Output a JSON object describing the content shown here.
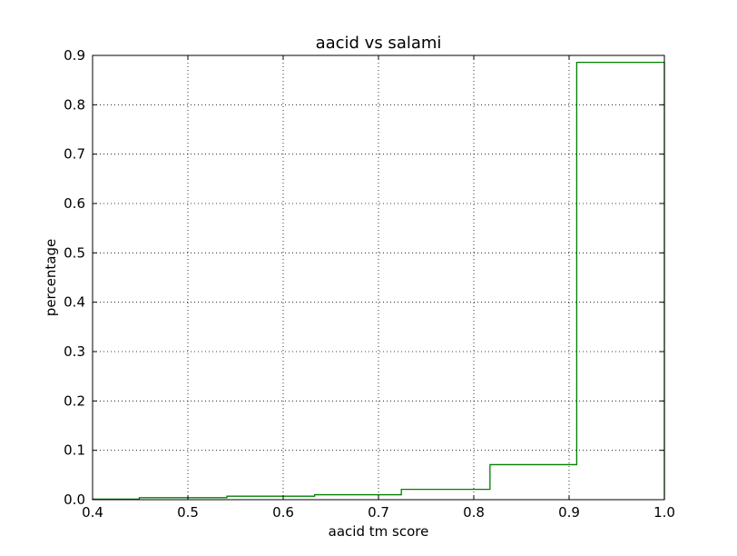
{
  "chart_data": {
    "type": "line",
    "style": "step-histogram",
    "title": "aacid vs salami",
    "xlabel": "aacid tm score",
    "ylabel": "percentage",
    "xlim": [
      0.4,
      1.0
    ],
    "ylim": [
      0.0,
      0.9
    ],
    "grid": true,
    "series": [
      {
        "color": "#008000",
        "bins": [
          {
            "x0": 0.4,
            "x1": 0.449,
            "y": 0.001
          },
          {
            "x0": 0.449,
            "x1": 0.541,
            "y": 0.004
          },
          {
            "x0": 0.541,
            "x1": 0.633,
            "y": 0.007
          },
          {
            "x0": 0.633,
            "x1": 0.724,
            "y": 0.01
          },
          {
            "x0": 0.724,
            "x1": 0.817,
            "y": 0.021
          },
          {
            "x0": 0.817,
            "x1": 0.908,
            "y": 0.071
          },
          {
            "x0": 0.908,
            "x1": 1.0,
            "y": 0.886
          }
        ]
      }
    ],
    "xticks": [
      "0.4",
      "0.5",
      "0.6",
      "0.7",
      "0.8",
      "0.9",
      "1.0"
    ],
    "yticks": [
      "0.0",
      "0.1",
      "0.2",
      "0.3",
      "0.4",
      "0.5",
      "0.6",
      "0.7",
      "0.8",
      "0.9"
    ]
  }
}
